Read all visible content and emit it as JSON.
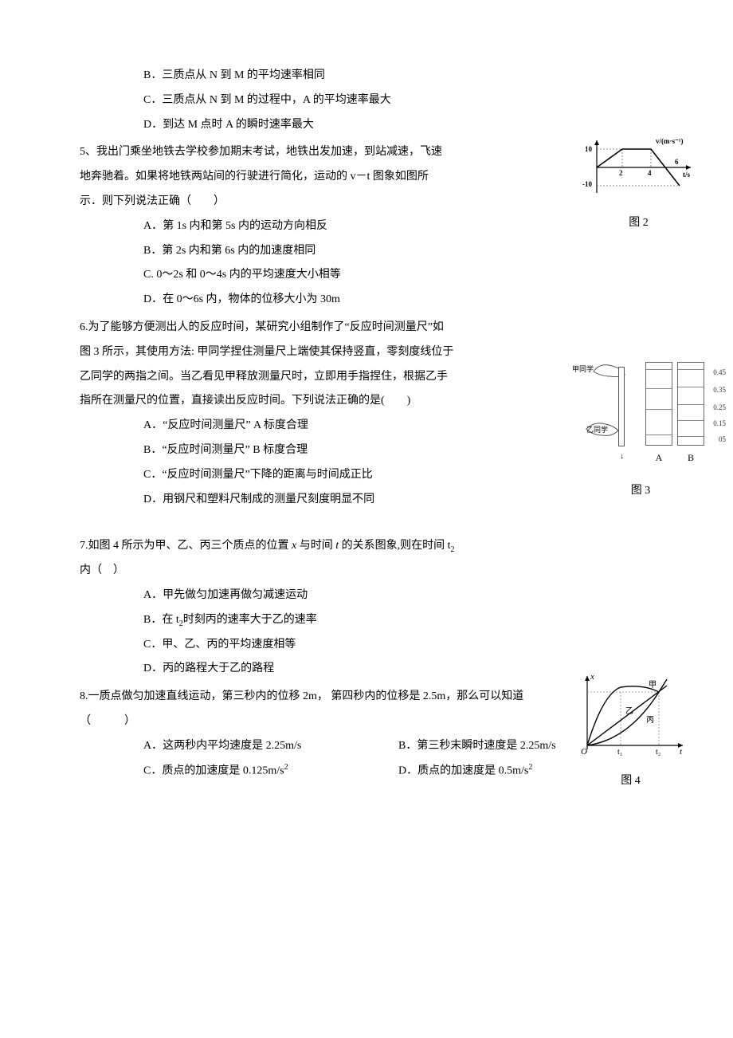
{
  "options_pre": {
    "b": "B．三质点从 N 到 M 的平均速率相同",
    "c": "C．三质点从 N 到 M 的过程中，A 的平均速率最大",
    "d": "D．到达 M 点时 A 的瞬时速率最大"
  },
  "q5": {
    "stem1": "5、我出门乘坐地铁去学校参加期末考试，地铁出发加速，到站减速，飞速",
    "stem2": "地奔驰着。如果将地铁两站间的行驶进行简化，运动的 v－t 图象如图所",
    "stem3": "示．则下列说法正确（　　）",
    "a": "A．第 1s 内和第 5s 内的运动方向相反",
    "b": "B．第 2s 内和第 6s 内的加速度相同",
    "c": "C. 0～2s 和 0～4s 内的平均速度大小相等",
    "d": "D．在 0～6s 内，物体的位移大小为 30m"
  },
  "q6": {
    "stem1": "6.为了能够方便测出人的反应时间，某研究小组制作了“反应时间测量尺”如",
    "stem2": "图 3 所示，其使用方法: 甲同学捏住测量尺上端使其保持竖直，零刻度线位于",
    "stem3": "乙同学的两指之间。当乙看见甲释放测量尺时，立即用手指捏住，根据乙手",
    "stem4": "指所在测量尺的位置，直接读出反应时间。下列说法正确的是(　　)",
    "a": "A．“反应时间测量尺” A 标度合理",
    "b": "B．“反应时间测量尺” B 标度合理",
    "c": "C．“反应时间测量尺”下降的距离与时间成正比",
    "d": "D．用钢尺和塑料尺制成的测量尺刻度明显不同"
  },
  "q7": {
    "stem1_pre": "7.如图 4 所示为甲、乙、丙三个质点的位置 ",
    "stem1_x": "x",
    "stem1_mid": " 与时间 ",
    "stem1_t": "t",
    "stem1_post": " 的关系图象,则在时间 t",
    "stem1_sub": "2",
    "stem2": "内（　）",
    "a": "A．甲先做匀加速再做匀减速运动",
    "b_pre": "B．在 t",
    "b_sub": "2",
    "b_post": "时刻丙的速率大于乙的速率",
    "c": "C．甲、乙、丙的平均速度相等",
    "d": "D．丙的路程大于乙的路程"
  },
  "q8": {
    "stem1": "8.一质点做匀加速直线运动，第三秒内的位移 2m， 第四秒内的位移是 2.5m，那么可以知道",
    "stem2": "（　　　）",
    "a": "A．这两秒内平均速度是 2.25m/s",
    "b": "B．第三秒末瞬时速度是 2.25m/s",
    "c_pre": "C．质点的加速度是 0.125m/s",
    "c_sup": "2",
    "d_pre": "D．质点的加速度是 0.5m/s",
    "d_sup": "2"
  },
  "fig2": {
    "label": "图 2",
    "ylabel": "v/(m·s⁻¹)",
    "xlabel": "t/s",
    "y_ticks": [
      "10",
      "-10"
    ],
    "x_ticks": [
      "2",
      "4",
      "6"
    ],
    "axis_color": "#000000",
    "line_color": "#000000",
    "dash_color": "#666666",
    "points": [
      [
        0,
        0
      ],
      [
        2,
        10
      ],
      [
        4,
        10
      ],
      [
        6,
        -10
      ]
    ]
  },
  "fig3": {
    "label": "图 3",
    "top_hand": "甲同学",
    "bot_hand": "乙同学",
    "col_a": "A",
    "col_b": "B",
    "scale_a": [
      "0.45",
      "0.25",
      "0.15",
      "05"
    ],
    "scale_a_pos": [
      8,
      32,
      58,
      90
    ],
    "scale_b": [
      "0.45",
      "0.35",
      "0.25",
      "0.15",
      "05"
    ],
    "scale_b_pos": [
      8,
      30,
      52,
      72,
      92
    ],
    "border_color": "#666666"
  },
  "fig4": {
    "label": "图 4",
    "ylabel": "x",
    "xlabel": "t",
    "tick_t1": "t₁",
    "tick_t2": "t₂",
    "curve_labels": {
      "jia": "甲",
      "yi": "乙",
      "bing": "丙"
    },
    "axis_color": "#000000",
    "line_color": "#000000",
    "dash_color": "#888888"
  }
}
